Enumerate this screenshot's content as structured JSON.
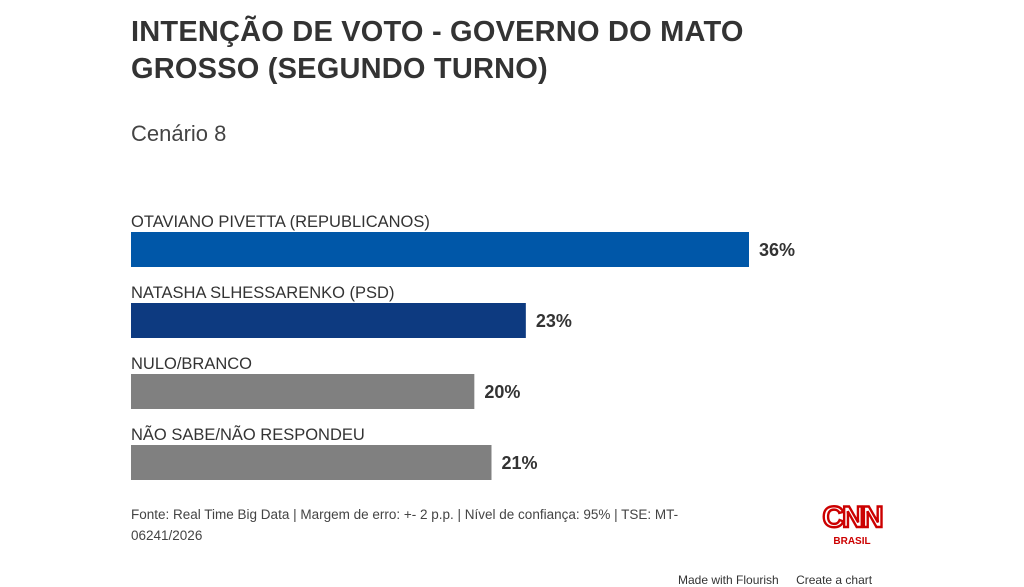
{
  "title_line1": "INTENÇÃO DE VOTO - GOVERNO DO MATO",
  "title_line2": "GROSSO (SEGUNDO TURNO)",
  "subtitle": "Cenário 8",
  "chart_data": {
    "type": "bar",
    "orientation": "horizontal",
    "categories": [
      "OTAVIANO PIVETTA (REPUBLICANOS)",
      "NATASHA SLHESSARENKO (PSD)",
      "NULO/BRANCO",
      "NÃO SABE/NÃO RESPONDEU"
    ],
    "values": [
      36,
      23,
      20,
      21
    ],
    "value_labels": [
      "36%",
      "23%",
      "20%",
      "21%"
    ],
    "colors": [
      "#0057a8",
      "#0d3a80",
      "#808080",
      "#808080"
    ],
    "unit": "%",
    "grid": false,
    "legend": "none"
  },
  "footer": {
    "line1": "Fonte: Real Time Big Data | Margem de erro: +- 2 p.p. | Nível de confiança: 95% | TSE: MT-",
    "line2": "06241/2026"
  },
  "logo": {
    "text": "CNN",
    "subtext": "BRASIL",
    "color": "#cc0000"
  },
  "made_with": "Made with Flourish",
  "create_chart": "Create a chart"
}
